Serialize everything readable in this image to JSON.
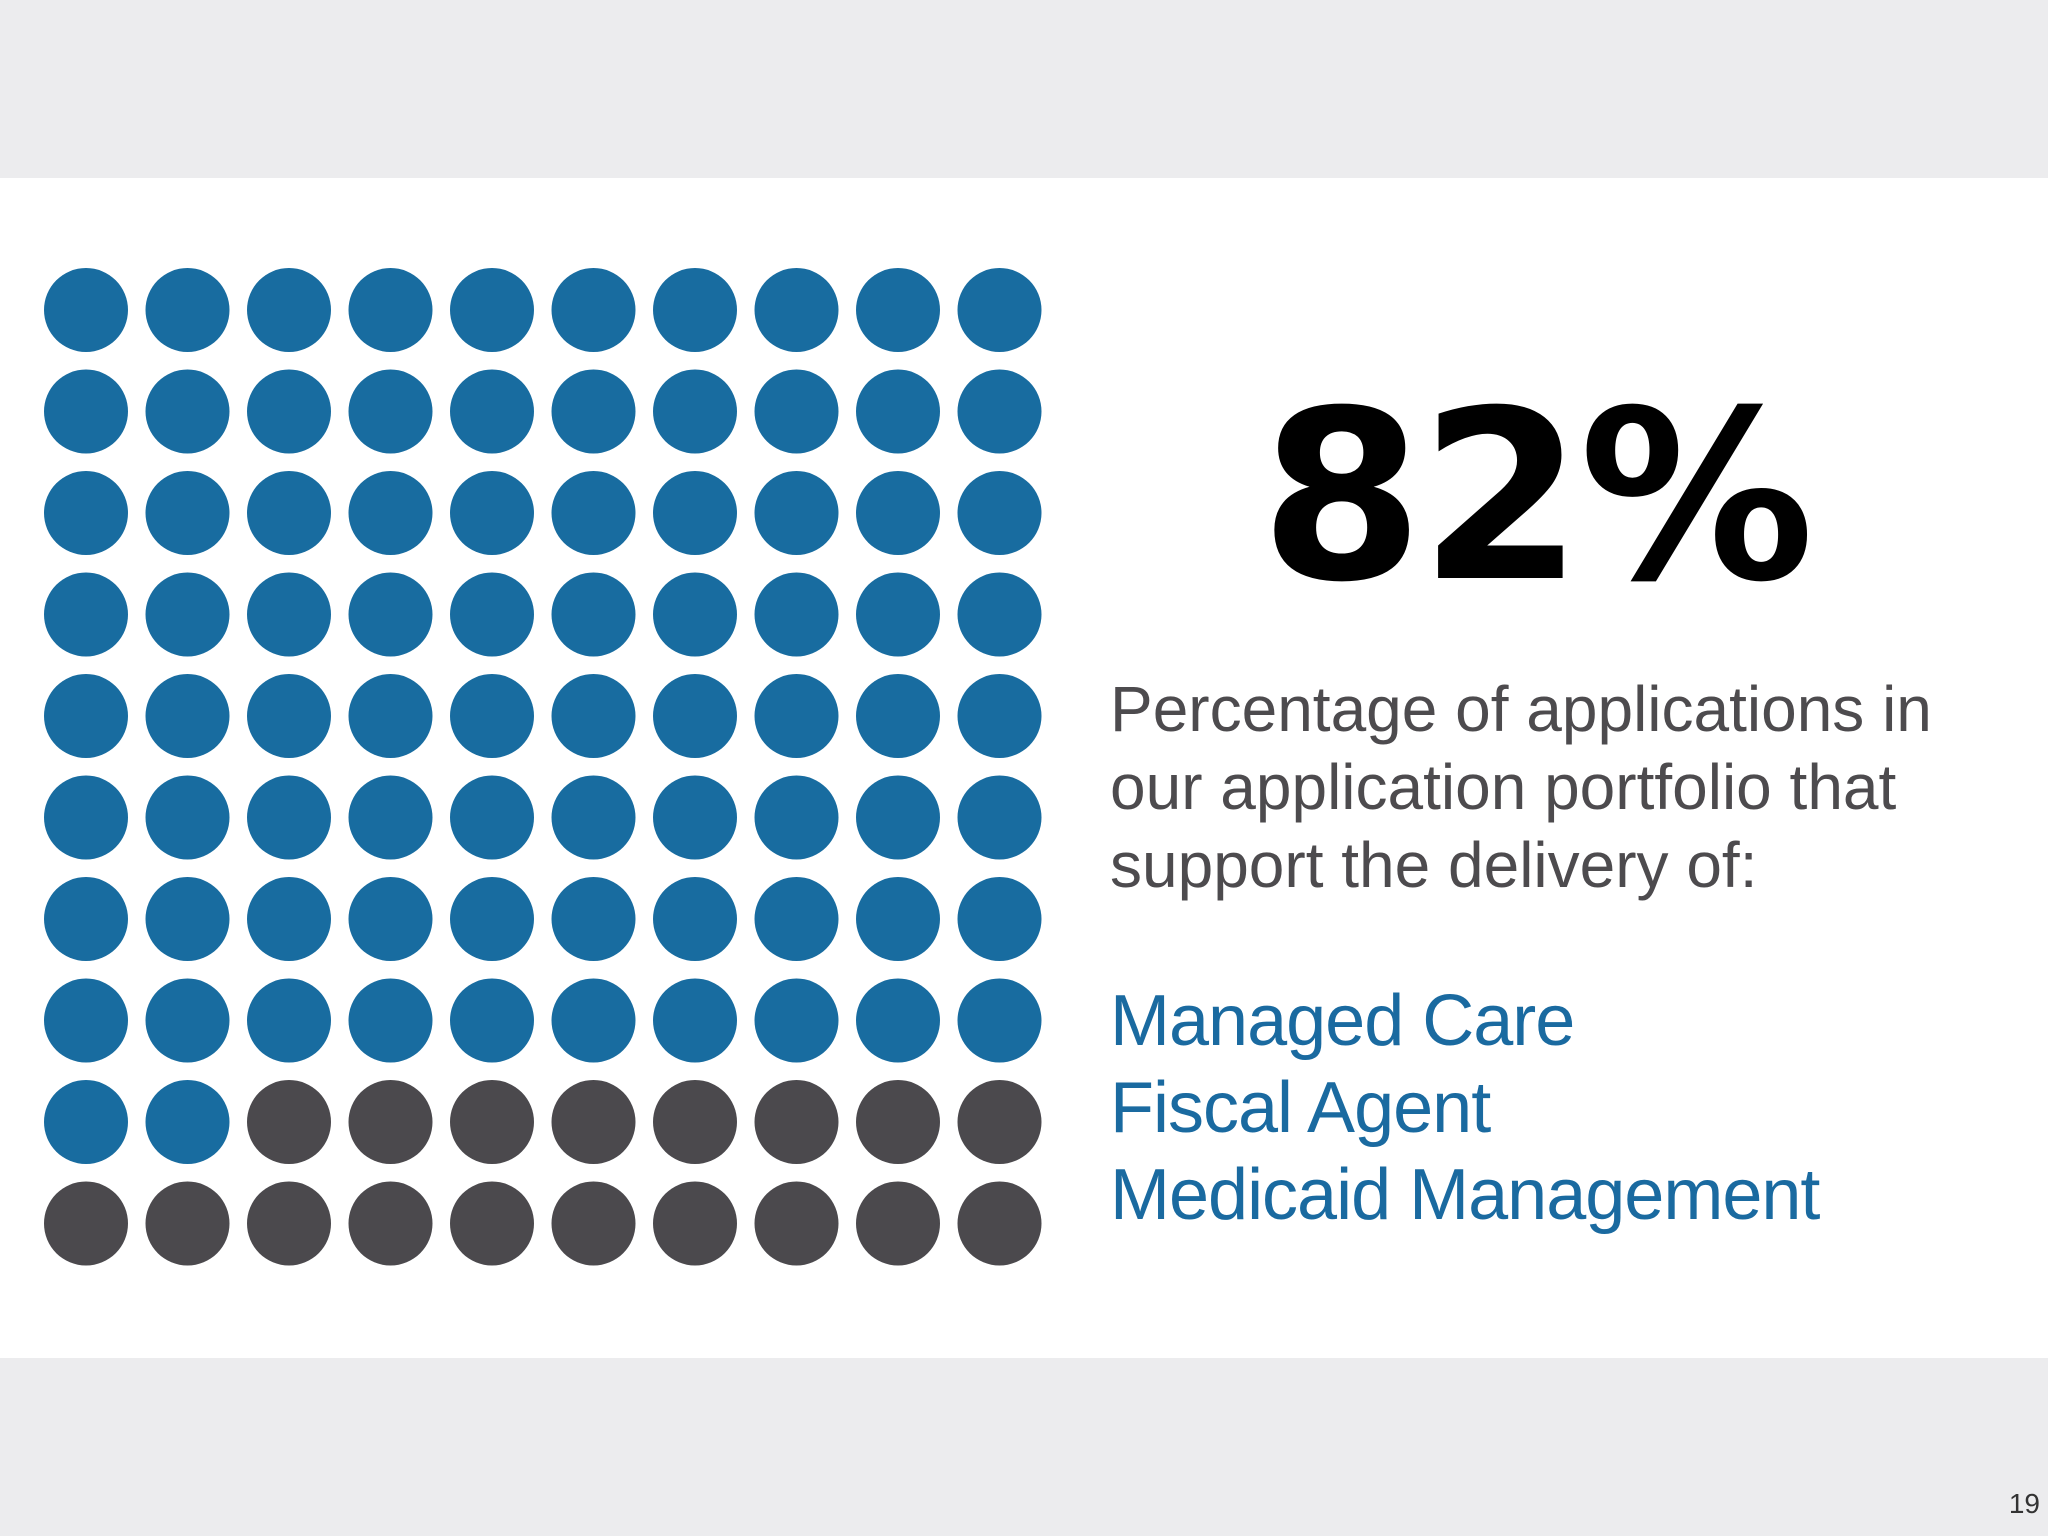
{
  "slide": {
    "stat_value": "82%",
    "description_lines": [
      "Percentage of applications in",
      "our application portfolio that",
      "support the delivery of:"
    ],
    "categories": [
      "Managed Care",
      "Fiscal Agent",
      "Medicaid Management"
    ],
    "page_number": "19"
  },
  "colors": {
    "filled": "#186ca0",
    "empty": "#4b494d",
    "category_text": "#1a6aa0",
    "background_band": "#ececee"
  },
  "chart_data": {
    "type": "waffle",
    "rows": 10,
    "columns": 10,
    "total": 100,
    "filled": 82,
    "empty": 18,
    "title": "",
    "xlabel": "",
    "ylabel": ""
  }
}
